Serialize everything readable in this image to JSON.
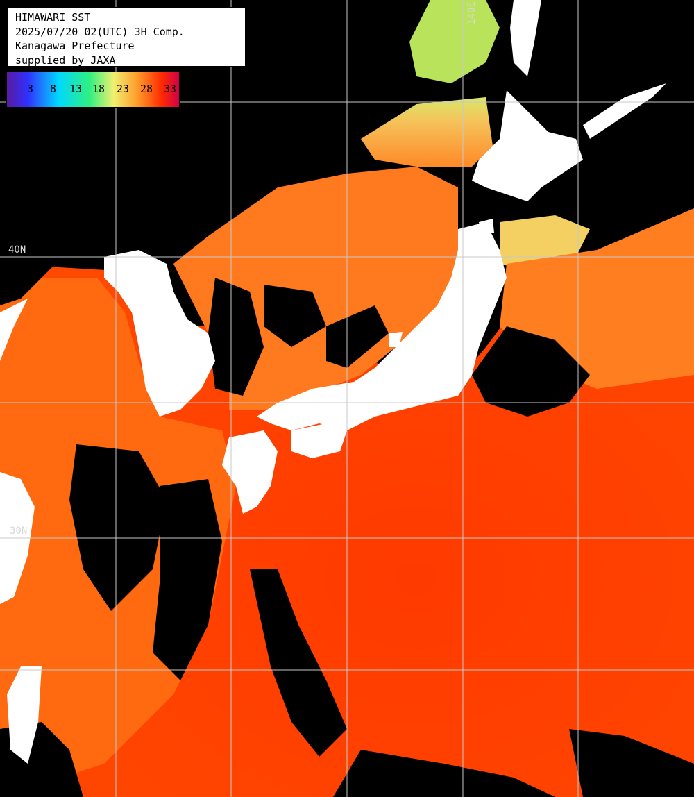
{
  "title_box": {
    "line1": "HIMAWARI SST",
    "line2": "2025/07/20 02(UTC) 3H Comp.",
    "line3": "Kanagawa Prefecture",
    "line4": "supplied by JAXA"
  },
  "legend": {
    "ticks": [
      "3",
      "8",
      "13",
      "18",
      "23",
      "28",
      "33"
    ],
    "colors": [
      "#5a1aa0",
      "#3030ff",
      "#00d8ff",
      "#30f080",
      "#f0f070",
      "#ff9a2a",
      "#ff3a00",
      "#d0004a"
    ]
  },
  "grid_labels": {
    "lat_40": "40N",
    "lat_30": "30N",
    "lon_140": "140E"
  },
  "colors": {
    "ocean_warm": "#ff4a00",
    "ocean_hot": "#ff3a00",
    "ocean_mid": "#ff7a1e",
    "ocean_cool": "#f2c35a",
    "ocean_cold": "#b9e35a",
    "cloud_mask": "#000000",
    "land": "#ffffff",
    "grid": "#c8c8c8"
  }
}
